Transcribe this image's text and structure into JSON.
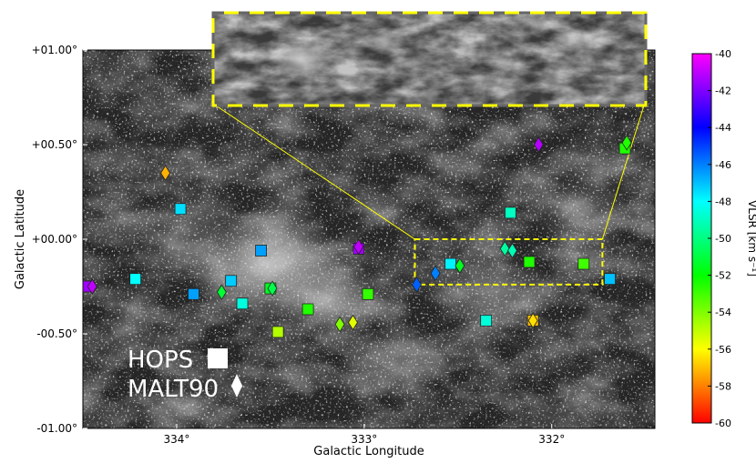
{
  "chart_data": {
    "type": "scatter",
    "xlabel": "Galactic Longitude",
    "ylabel": "Galactic Latitude",
    "xlim": [
      334.5,
      331.45
    ],
    "ylim": [
      -1.0,
      1.0
    ],
    "x_ticks": [
      {
        "value": 334,
        "label": "334°"
      },
      {
        "value": 333,
        "label": "333°"
      },
      {
        "value": 332,
        "label": "332°"
      }
    ],
    "y_ticks": [
      {
        "value": 1.0,
        "label": "+01.00°"
      },
      {
        "value": 0.5,
        "label": "+00.50°"
      },
      {
        "value": 0.0,
        "label": "+00.00°"
      },
      {
        "value": -0.5,
        "label": "-00.50°"
      },
      {
        "value": -1.0,
        "label": "-01.00°"
      }
    ],
    "colorbar": {
      "label": "VLSR [km s⁻¹]",
      "range": [
        -60,
        -40
      ],
      "ticks": [
        {
          "value": -40,
          "label": "-40"
        },
        {
          "value": -42,
          "label": "-42"
        },
        {
          "value": -44,
          "label": "-44"
        },
        {
          "value": -46,
          "label": "-46"
        },
        {
          "value": -48,
          "label": "-48"
        },
        {
          "value": -50,
          "label": "-50"
        },
        {
          "value": -52,
          "label": "-52"
        },
        {
          "value": -54,
          "label": "-54"
        },
        {
          "value": -56,
          "label": "-56"
        },
        {
          "value": -58,
          "label": "-58"
        },
        {
          "value": -60,
          "label": "-60"
        }
      ]
    },
    "legend_entries": [
      {
        "label": "HOPS",
        "marker": "square"
      },
      {
        "label": "MALT90",
        "marker": "diamond"
      }
    ],
    "legend_position": "bottom-left",
    "reference_lines": [
      {
        "b": 0.01,
        "style": "solid"
      },
      {
        "b": -0.33,
        "style": "dashed"
      },
      {
        "b": -0.68,
        "style": "solid"
      }
    ],
    "zoom_box": {
      "l": [
        332.73,
        331.73
      ],
      "b": [
        -0.24,
        0.0
      ]
    },
    "series": [
      {
        "name": "HOPS",
        "marker": "square",
        "points": [
          {
            "l": 334.47,
            "b": -0.25,
            "v": -41.5
          },
          {
            "l": 334.22,
            "b": -0.21,
            "v": -48.0
          },
          {
            "l": 333.98,
            "b": 0.16,
            "v": -47.5
          },
          {
            "l": 333.91,
            "b": -0.29,
            "v": -46.5
          },
          {
            "l": 333.71,
            "b": -0.22,
            "v": -47.2
          },
          {
            "l": 333.65,
            "b": -0.34,
            "v": -48.5
          },
          {
            "l": 333.55,
            "b": -0.06,
            "v": -46.5
          },
          {
            "l": 333.5,
            "b": -0.26,
            "v": -51.5
          },
          {
            "l": 333.46,
            "b": -0.49,
            "v": -54.8
          },
          {
            "l": 333.3,
            "b": -0.37,
            "v": -52.5
          },
          {
            "l": 333.03,
            "b": -0.05,
            "v": -41.5
          },
          {
            "l": 332.98,
            "b": -0.29,
            "v": -52.8
          },
          {
            "l": 332.54,
            "b": -0.13,
            "v": -47.8
          },
          {
            "l": 332.35,
            "b": -0.43,
            "v": -48.6
          },
          {
            "l": 332.22,
            "b": 0.14,
            "v": -49.0
          },
          {
            "l": 332.12,
            "b": -0.12,
            "v": -52.5
          },
          {
            "l": 332.1,
            "b": -0.43,
            "v": -57.0
          },
          {
            "l": 331.83,
            "b": -0.13,
            "v": -53.0
          },
          {
            "l": 331.69,
            "b": -0.21,
            "v": -47.0
          },
          {
            "l": 331.61,
            "b": 0.48,
            "v": -52.5
          }
        ]
      },
      {
        "name": "MALT90",
        "marker": "diamond",
        "points": [
          {
            "l": 334.45,
            "b": -0.25,
            "v": -41.0
          },
          {
            "l": 334.06,
            "b": 0.35,
            "v": -57.2
          },
          {
            "l": 333.76,
            "b": -0.28,
            "v": -51.2
          },
          {
            "l": 333.49,
            "b": -0.26,
            "v": -50.8
          },
          {
            "l": 333.13,
            "b": -0.45,
            "v": -54.0
          },
          {
            "l": 333.06,
            "b": -0.44,
            "v": -55.5
          },
          {
            "l": 333.03,
            "b": -0.04,
            "v": -41.0
          },
          {
            "l": 332.72,
            "b": -0.24,
            "v": -45.5
          },
          {
            "l": 332.62,
            "b": -0.18,
            "v": -46.0
          },
          {
            "l": 332.49,
            "b": -0.14,
            "v": -51.5
          },
          {
            "l": 332.25,
            "b": -0.05,
            "v": -49.5
          },
          {
            "l": 332.21,
            "b": -0.06,
            "v": -49.2
          },
          {
            "l": 332.1,
            "b": -0.43,
            "v": -56.5
          },
          {
            "l": 332.07,
            "b": 0.5,
            "v": -41.2
          },
          {
            "l": 331.6,
            "b": 0.51,
            "v": -52.5
          }
        ]
      }
    ]
  }
}
